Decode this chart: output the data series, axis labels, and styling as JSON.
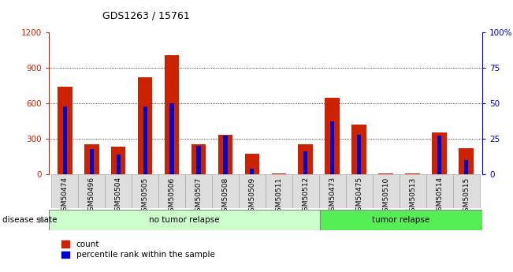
{
  "title": "GDS1263 / 15761",
  "samples": [
    "GSM50474",
    "GSM50496",
    "GSM50504",
    "GSM50505",
    "GSM50506",
    "GSM50507",
    "GSM50508",
    "GSM50509",
    "GSM50511",
    "GSM50512",
    "GSM50473",
    "GSM50475",
    "GSM50510",
    "GSM50513",
    "GSM50514",
    "GSM50515"
  ],
  "counts": [
    740,
    255,
    235,
    820,
    1010,
    250,
    330,
    175,
    5,
    250,
    650,
    420,
    5,
    5,
    350,
    220
  ],
  "percentiles": [
    48,
    18,
    14,
    48,
    50,
    20,
    27,
    4,
    0,
    16,
    37,
    28,
    0,
    0,
    27,
    10
  ],
  "groups": [
    "no tumor relapse",
    "no tumor relapse",
    "no tumor relapse",
    "no tumor relapse",
    "no tumor relapse",
    "no tumor relapse",
    "no tumor relapse",
    "no tumor relapse",
    "no tumor relapse",
    "no tumor relapse",
    "tumor relapse",
    "tumor relapse",
    "tumor relapse",
    "tumor relapse",
    "tumor relapse",
    "tumor relapse"
  ],
  "group_colors": {
    "no tumor relapse": "#ccffcc",
    "tumor relapse": "#55ee55"
  },
  "red_color": "#cc2200",
  "blue_color": "#0000cc",
  "ylim_left": [
    0,
    1200
  ],
  "ylim_right": [
    0,
    100
  ],
  "yticks_left": [
    0,
    300,
    600,
    900,
    1200
  ],
  "yticks_right": [
    0,
    25,
    50,
    75,
    100
  ],
  "label_count": "count",
  "label_percentile": "percentile rank within the sample",
  "red_bar_width": 0.55,
  "blue_bar_width": 0.15
}
